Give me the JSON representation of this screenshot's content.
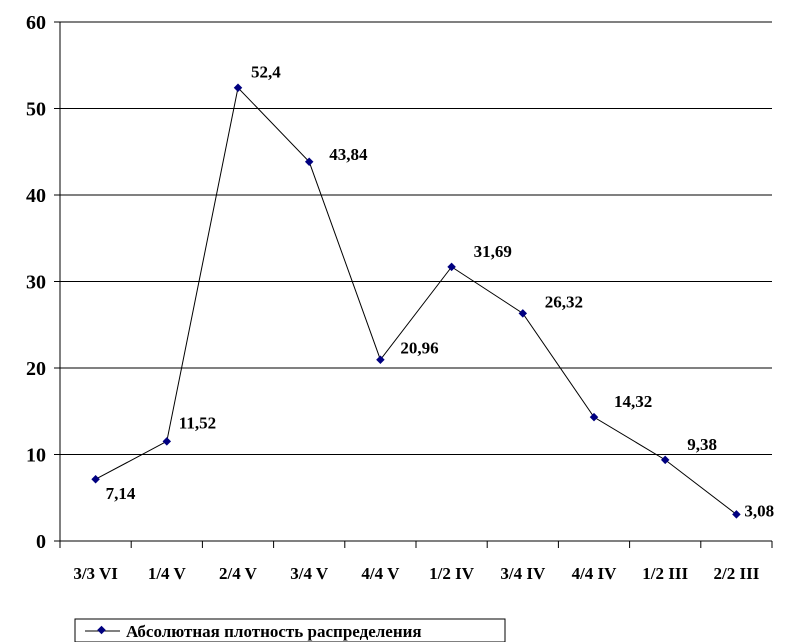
{
  "chart_data": {
    "type": "line",
    "title": "",
    "xlabel": "",
    "ylabel": "",
    "categories": [
      "3/3 VI",
      "1/4 V",
      "2/4 V",
      "3/4 V",
      "4/4 V",
      "1/2 IV",
      "3/4 IV",
      "4/4 IV",
      "1/2 III",
      "2/2 III"
    ],
    "series": [
      {
        "name": "Абсолютная плотность распределения",
        "values": [
          7.14,
          11.52,
          52.4,
          43.84,
          20.96,
          31.69,
          26.32,
          14.32,
          9.38,
          3.08
        ],
        "labels": [
          "7,14",
          "11,52",
          "52,4",
          "43,84",
          "20,96",
          "31,69",
          "26,32",
          "14,32",
          "9,38",
          "3,08"
        ],
        "color": "#000080"
      }
    ],
    "ylim": [
      0,
      60
    ],
    "yticks": [
      0,
      10,
      20,
      30,
      40,
      50,
      60
    ],
    "grid": "horizontal",
    "legend": "bottom-left"
  }
}
